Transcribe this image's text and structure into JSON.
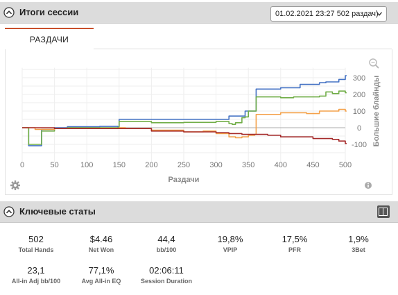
{
  "session": {
    "title": "Итоги сессии",
    "selected": "01.02.2021 23:27 502 раздач)"
  },
  "tabs": [
    {
      "label": "РАЗДАЧИ"
    }
  ],
  "chart_data": {
    "type": "line",
    "xlabel": "Раздачи",
    "ylabel": "Большие блайнды",
    "xlim": [
      0,
      510
    ],
    "ylim": [
      -150,
      360
    ],
    "x_ticks": [
      "0",
      "50",
      "100",
      "150",
      "200",
      "250",
      "300",
      "350",
      "400",
      "450",
      "500"
    ],
    "y_ticks": [
      "300",
      "200",
      "100",
      "0",
      "-100"
    ],
    "grid": true,
    "series": [
      {
        "color": "#4472c4",
        "x": [
          0,
          2,
          8,
          10,
          20,
          30,
          50,
          70,
          100,
          120,
          148,
          150,
          200,
          250,
          300,
          320,
          340,
          345,
          350,
          355,
          360,
          362,
          380,
          400,
          420,
          430,
          440,
          460,
          470,
          480,
          490,
          500,
          502
        ],
        "y": [
          0,
          0,
          0,
          -108,
          -108,
          -10,
          0,
          6,
          6,
          8,
          6,
          50,
          50,
          50,
          50,
          70,
          70,
          100,
          100,
          100,
          100,
          232,
          232,
          240,
          240,
          260,
          260,
          270,
          275,
          275,
          290,
          312,
          312
        ]
      },
      {
        "color": "#70ad47",
        "x": [
          0,
          2,
          8,
          10,
          20,
          30,
          50,
          70,
          100,
          148,
          150,
          180,
          200,
          250,
          300,
          320,
          325,
          330,
          340,
          345,
          350,
          355,
          360,
          362,
          380,
          400,
          420,
          440,
          460,
          470,
          480,
          490,
          500,
          502
        ],
        "y": [
          0,
          0,
          0,
          -100,
          -100,
          -20,
          -5,
          0,
          0,
          0,
          38,
          38,
          30,
          32,
          38,
          25,
          20,
          30,
          60,
          65,
          100,
          100,
          100,
          185,
          185,
          180,
          185,
          185,
          190,
          215,
          205,
          220,
          210,
          210
        ]
      },
      {
        "color": "#f4a14a",
        "x": [
          0,
          10,
          20,
          30,
          50,
          100,
          150,
          160,
          200,
          250,
          280,
          300,
          320,
          330,
          340,
          350,
          355,
          360,
          362,
          380,
          400,
          430,
          440,
          460,
          480,
          490,
          500,
          502
        ],
        "y": [
          0,
          0,
          -10,
          -10,
          -5,
          -5,
          0,
          -5,
          -15,
          -25,
          -20,
          -35,
          -55,
          -60,
          -55,
          -45,
          -45,
          -40,
          80,
          80,
          90,
          90,
          85,
          100,
          100,
          110,
          100,
          100
        ]
      },
      {
        "color": "#a52a2a",
        "x": [
          0,
          30,
          50,
          100,
          150,
          200,
          250,
          300,
          320,
          340,
          350,
          380,
          400,
          420,
          450,
          480,
          490,
          500,
          502
        ],
        "y": [
          0,
          0,
          -5,
          -5,
          -5,
          -20,
          -25,
          -30,
          -35,
          -40,
          -40,
          -45,
          -55,
          -55,
          -65,
          -70,
          -80,
          -95,
          -95
        ]
      }
    ]
  },
  "icons": {
    "settings": "gear-icon",
    "zoom": "zoom-icon",
    "info": "info-icon",
    "collapse": "chevron-up-icon",
    "layout": "layout-toggle-icon"
  },
  "stats_panel": {
    "title": "Ключевые статы"
  },
  "stats": [
    {
      "value": "502",
      "label": "Total Hands"
    },
    {
      "value": "$4.46",
      "label": "Net Won"
    },
    {
      "value": "44,4",
      "label": "bb/100"
    },
    {
      "value": "19,8%",
      "label": "VPIP"
    },
    {
      "value": "17,5%",
      "label": "PFR"
    },
    {
      "value": "1,9%",
      "label": "3Bet"
    },
    {
      "value": "23,1",
      "label": "All-in Adj bb/100"
    },
    {
      "value": "77,1%",
      "label": "Avg All-in EQ"
    },
    {
      "value": "02:06:11",
      "label": "Session Duration"
    }
  ]
}
